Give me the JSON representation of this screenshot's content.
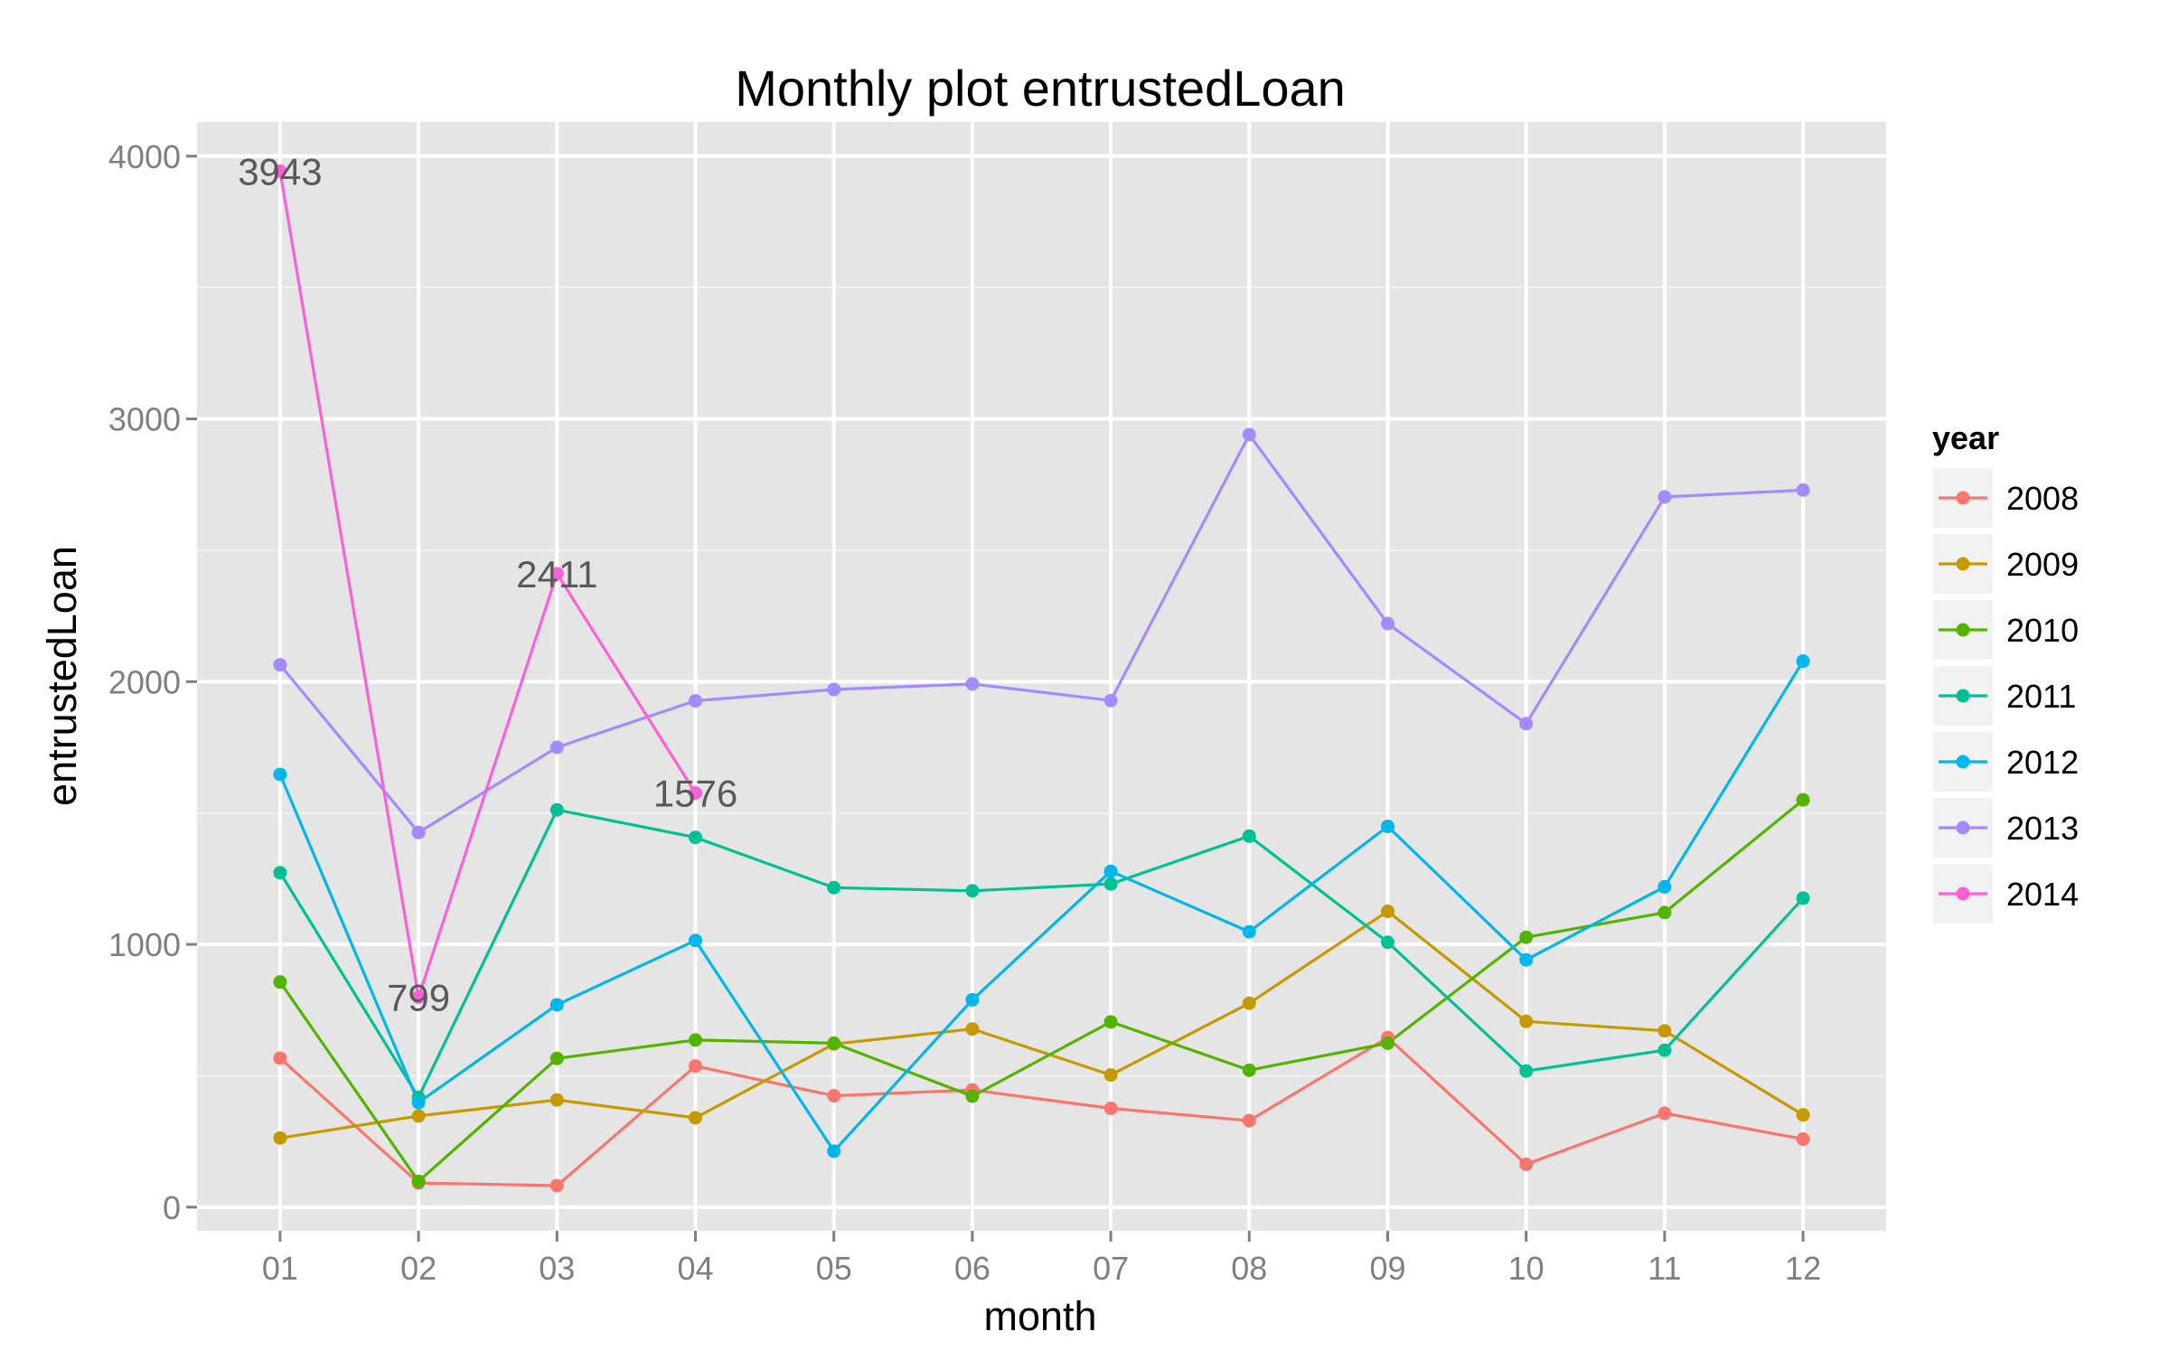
{
  "chart_data": {
    "type": "line",
    "title": "Monthly plot entrustedLoan",
    "xlabel": "month",
    "ylabel": "entrustedLoan",
    "categories": [
      "01",
      "02",
      "03",
      "04",
      "05",
      "06",
      "07",
      "08",
      "09",
      "10",
      "11",
      "12"
    ],
    "ylim": [
      -90,
      4130
    ],
    "yticks": [
      0,
      1000,
      2000,
      3000,
      4000
    ],
    "grid": true,
    "legend": {
      "title": "year",
      "position": "right"
    },
    "series": [
      {
        "name": "2008",
        "color": "#F8766D",
        "values": [
          567,
          92,
          82,
          537,
          424,
          446,
          376,
          329,
          645,
          163,
          357,
          259
        ]
      },
      {
        "name": "2009",
        "color": "#C49A00",
        "values": [
          263,
          347,
          408,
          340,
          621,
          678,
          503,
          776,
          1126,
          707,
          671,
          351
        ]
      },
      {
        "name": "2010",
        "color": "#53B400",
        "values": [
          857,
          98,
          566,
          636,
          624,
          422,
          705,
          521,
          624,
          1027,
          1121,
          1550
        ]
      },
      {
        "name": "2011",
        "color": "#00C094",
        "values": [
          1273,
          418,
          1512,
          1407,
          1216,
          1204,
          1230,
          1412,
          1008,
          518,
          597,
          1176
        ]
      },
      {
        "name": "2012",
        "color": "#00B6EB",
        "values": [
          1647,
          398,
          770,
          1015,
          213,
          789,
          1278,
          1048,
          1449,
          941,
          1219,
          2078
        ]
      },
      {
        "name": "2013",
        "color": "#A58AFF",
        "values": [
          2064,
          1426,
          1750,
          1927,
          1970,
          1991,
          1928,
          2940,
          2221,
          1840,
          2703,
          2729
        ]
      },
      {
        "name": "2014",
        "color": "#FB61D7",
        "values": [
          3943,
          799,
          2411,
          1576,
          null,
          null,
          null,
          null,
          null,
          null,
          null,
          null
        ]
      }
    ],
    "annotations": [
      {
        "category": "01",
        "value": 3943,
        "text": "3943"
      },
      {
        "category": "02",
        "value": 799,
        "text": "799"
      },
      {
        "category": "03",
        "value": 2411,
        "text": "2411"
      },
      {
        "category": "04",
        "value": 1576,
        "text": "1576"
      }
    ]
  }
}
